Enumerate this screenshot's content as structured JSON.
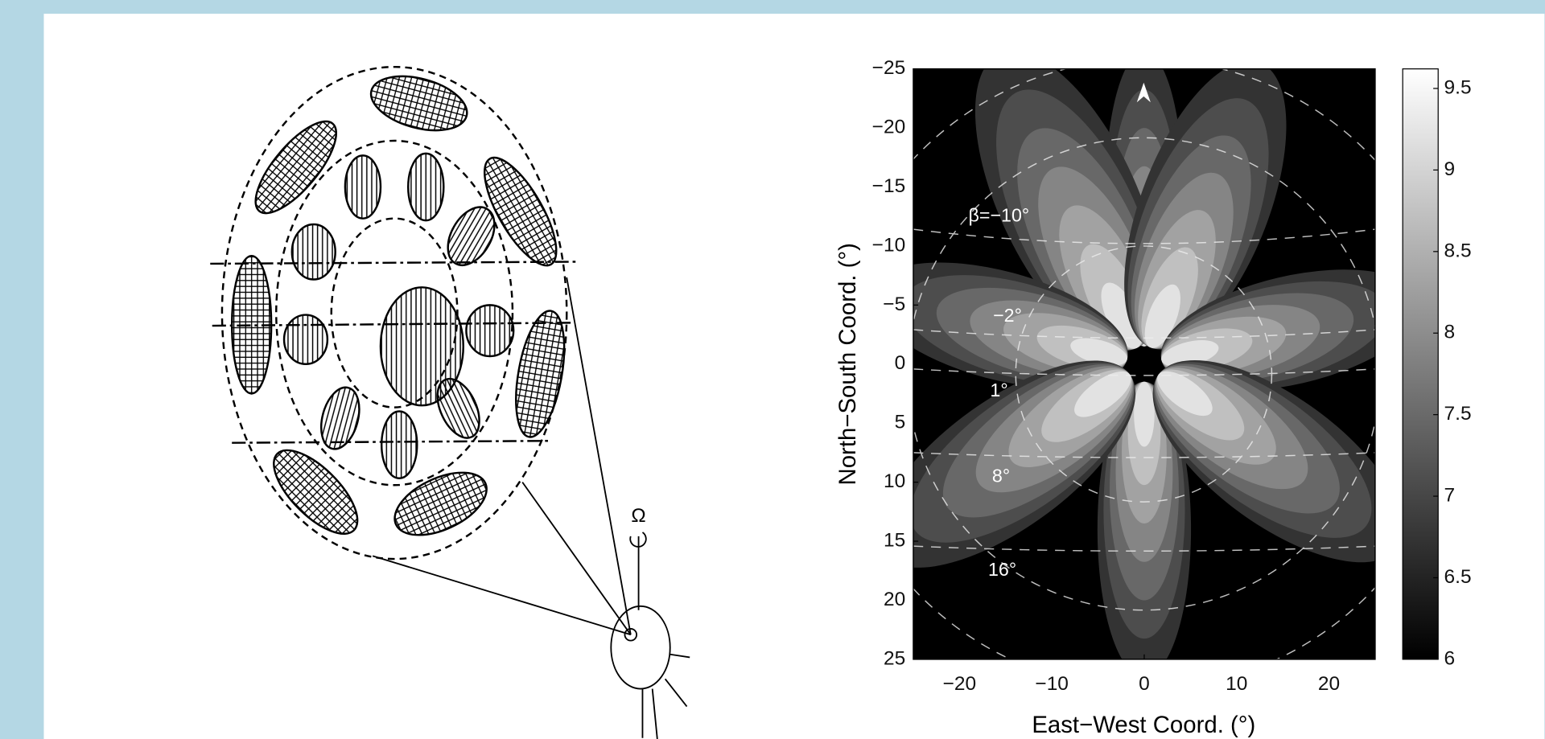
{
  "figure_label": "Ω",
  "chart_data": {
    "type": "heatmap",
    "xlabel": "East−West Coord. (°)",
    "ylabel": "North−South Coord. (°)",
    "xlim": [
      -25,
      25
    ],
    "ylim": [
      -25,
      25
    ],
    "y_inverted": true,
    "xticks": [
      {
        "value": -20,
        "label": "−20"
      },
      {
        "value": -10,
        "label": "−10"
      },
      0,
      10,
      20
    ],
    "yticks": [
      {
        "value": -25,
        "label": "−25"
      },
      {
        "value": -20,
        "label": "−20"
      },
      {
        "value": -15,
        "label": "−15"
      },
      {
        "value": -10,
        "label": "−10"
      },
      {
        "value": -5,
        "label": "−5"
      },
      0,
      5,
      10,
      15,
      20,
      25
    ],
    "colorbar": {
      "lim": [
        6,
        9.62
      ],
      "ticks": [
        6,
        6.5,
        7,
        7.5,
        8,
        8.5,
        9,
        9.5
      ]
    },
    "annotations": [
      "β=−10°",
      "−2°",
      "1°",
      "8°",
      "16°"
    ]
  }
}
